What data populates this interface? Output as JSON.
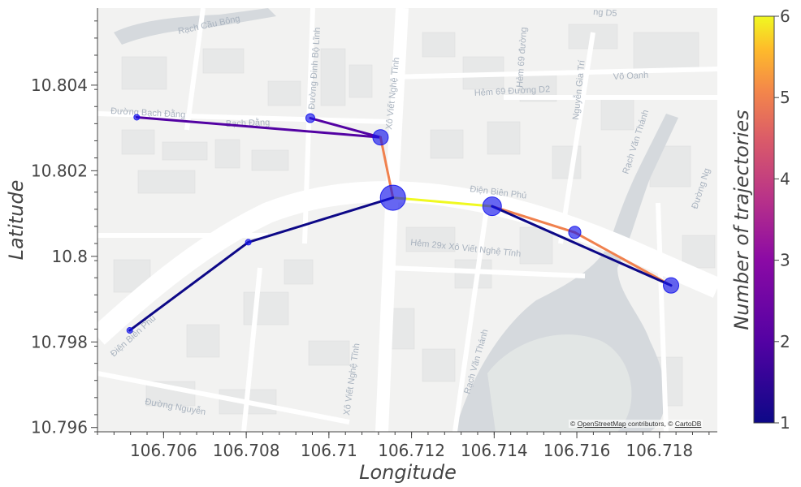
{
  "map": {
    "attribution": {
      "copy": "©",
      "osm": "OpenStreetMap",
      "contrib": "contributors, ©",
      "carto": "CartoDB"
    },
    "street_labels": [
      "Rạch Cầu Bông",
      "Đường Đinh Bộ Lĩnh",
      "Xô Viết Nghệ Tĩnh",
      "Hẻm 69 Đường D2",
      "Hẻm 69 đường",
      "Nguyễn Gia Trí",
      "Võ Oanh",
      "Đường Bạch Đằng",
      "Bạch Đằng",
      "Điện Biên Phủ",
      "Rạch Văn Thánh",
      "Đường Ng",
      "Hẻm 29x Xô Viết Nghệ Tĩnh",
      "Điện Biên Phủ",
      "Rạch Văn Thánh",
      "Xô Viết Nghệ Tĩnh",
      "Đường Nguyễn",
      "ng D5"
    ],
    "colors": {
      "land": "#f2f2f1",
      "road": "#ffffff",
      "water": "#d5d9dd",
      "park": "#e4e7e6"
    }
  },
  "chart_data": {
    "type": "scatter",
    "subtype": "map-trajectory-network",
    "xlabel": "Longitude",
    "ylabel": "Latitude",
    "xlim": [
      106.7044,
      106.7194
    ],
    "ylim": [
      10.7959,
      10.8058
    ],
    "x_ticks": [
      106.706,
      106.708,
      106.71,
      106.712,
      106.714,
      106.716,
      106.718
    ],
    "x_tick_labels": [
      "106.706",
      "106.708",
      "106.71",
      "106.712",
      "106.714",
      "106.716",
      "106.718"
    ],
    "y_ticks": [
      10.796,
      10.798,
      10.8,
      10.802,
      10.804
    ],
    "y_tick_labels": [
      "10.796",
      "10.798",
      "10.8",
      "10.802",
      "10.804"
    ],
    "colorbar": {
      "title": "Number of trajectories",
      "min": 1,
      "max": 6,
      "ticks": [
        1,
        2,
        3,
        4,
        5,
        6
      ],
      "tick_labels": [
        "1",
        "2",
        "3",
        "4",
        "5",
        "6"
      ]
    },
    "nodes": [
      {
        "lon": 106.70535,
        "lat": 10.80325,
        "size": 1
      },
      {
        "lon": 106.70955,
        "lat": 10.80323,
        "size": 2
      },
      {
        "lon": 106.71125,
        "lat": 10.80278,
        "size": 4
      },
      {
        "lon": 106.71155,
        "lat": 10.80137,
        "size": 7
      },
      {
        "lon": 106.71395,
        "lat": 10.80117,
        "size": 5
      },
      {
        "lon": 106.71595,
        "lat": 10.80056,
        "size": 3
      },
      {
        "lon": 106.71828,
        "lat": 10.79932,
        "size": 4
      },
      {
        "lon": 106.70805,
        "lat": 10.80033,
        "size": 1
      },
      {
        "lon": 106.70518,
        "lat": 10.79827,
        "size": 1
      }
    ],
    "edges": [
      {
        "from": 0,
        "to": 2,
        "trajectories": 2
      },
      {
        "from": 1,
        "to": 2,
        "trajectories": 2
      },
      {
        "from": 2,
        "to": 3,
        "trajectories": 5
      },
      {
        "from": 3,
        "to": 4,
        "trajectories": 6
      },
      {
        "from": 4,
        "to": 5,
        "trajectories": 5
      },
      {
        "from": 5,
        "to": 6,
        "trajectories": 5
      },
      {
        "from": 4,
        "to": 6,
        "trajectories": 1
      },
      {
        "from": 3,
        "to": 7,
        "trajectories": 1
      },
      {
        "from": 7,
        "to": 8,
        "trajectories": 1
      }
    ]
  }
}
